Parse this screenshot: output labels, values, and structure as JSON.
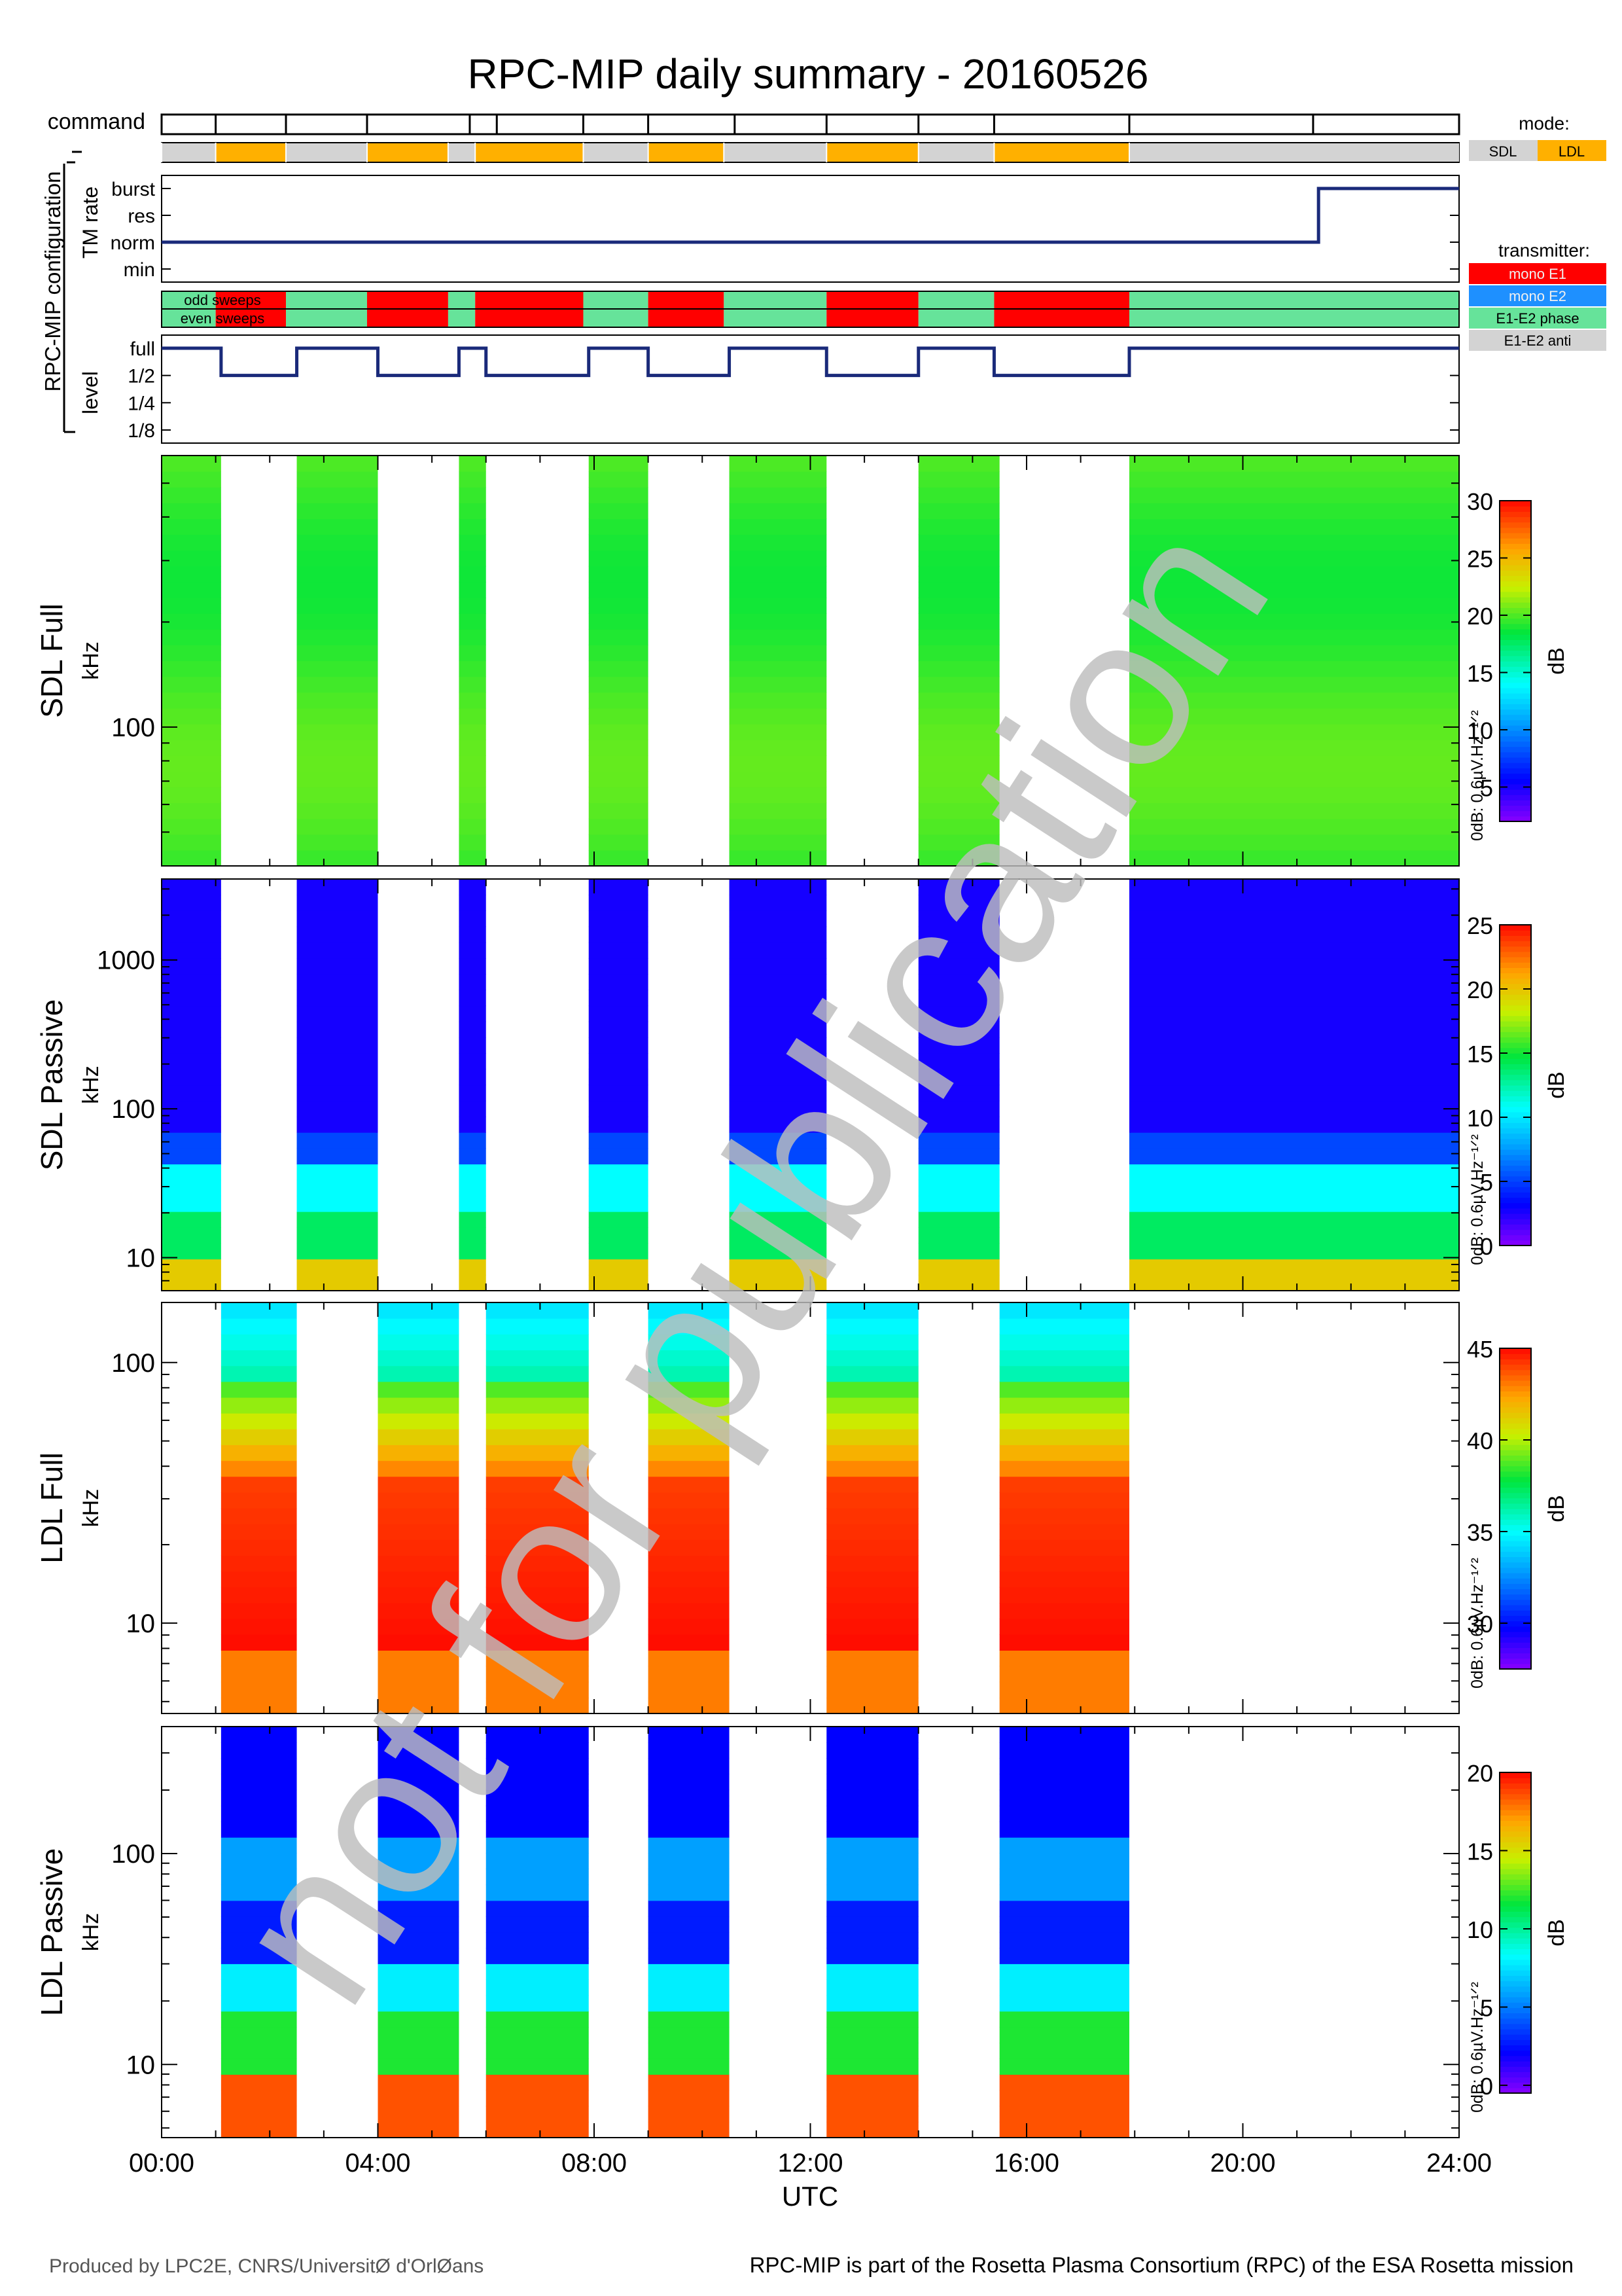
{
  "title": "RPC-MIP daily summary - 20160526",
  "config": {
    "group_label": "RPC-MIP configuration",
    "command_label": "command",
    "tm_rate_label": "TM rate",
    "tm_rate_levels": [
      "burst",
      "res",
      "norm",
      "min"
    ],
    "transmitter_row_labels": [
      "odd sweeps",
      "even sweeps"
    ],
    "level_label": "level",
    "level_levels": [
      "full",
      "1/2",
      "1/4",
      "1/8"
    ],
    "command_times_h": [
      0.0,
      1.0,
      2.3,
      3.8,
      5.7,
      6.2,
      7.8,
      9.0,
      10.6,
      12.3,
      14.0,
      15.4,
      17.9,
      21.3,
      24.0
    ],
    "mode_segments": [
      {
        "start": 0.0,
        "end": 1.0,
        "mode": "SDL"
      },
      {
        "start": 1.0,
        "end": 2.3,
        "mode": "LDL"
      },
      {
        "start": 2.3,
        "end": 3.8,
        "mode": "SDL"
      },
      {
        "start": 3.8,
        "end": 5.3,
        "mode": "LDL"
      },
      {
        "start": 5.3,
        "end": 5.8,
        "mode": "SDL"
      },
      {
        "start": 5.8,
        "end": 7.8,
        "mode": "LDL"
      },
      {
        "start": 7.8,
        "end": 9.0,
        "mode": "SDL"
      },
      {
        "start": 9.0,
        "end": 10.4,
        "mode": "LDL"
      },
      {
        "start": 10.4,
        "end": 12.3,
        "mode": "SDL"
      },
      {
        "start": 12.3,
        "end": 14.0,
        "mode": "LDL"
      },
      {
        "start": 14.0,
        "end": 15.4,
        "mode": "SDL"
      },
      {
        "start": 15.4,
        "end": 17.9,
        "mode": "LDL"
      },
      {
        "start": 17.9,
        "end": 24.0,
        "mode": "SDL"
      }
    ],
    "tm_rate_steps": [
      {
        "start": 0.0,
        "end": 21.4,
        "level": "norm"
      },
      {
        "start": 21.4,
        "end": 24.0,
        "level": "burst"
      }
    ],
    "transmitter_segments": [
      {
        "start": 0.0,
        "end": 1.0,
        "tx": "E1-E2 phase"
      },
      {
        "start": 1.0,
        "end": 2.3,
        "tx": "mono E1"
      },
      {
        "start": 2.3,
        "end": 3.8,
        "tx": "E1-E2 phase"
      },
      {
        "start": 3.8,
        "end": 5.3,
        "tx": "mono E1"
      },
      {
        "start": 5.3,
        "end": 5.8,
        "tx": "E1-E2 phase"
      },
      {
        "start": 5.8,
        "end": 7.8,
        "tx": "mono E1"
      },
      {
        "start": 7.8,
        "end": 9.0,
        "tx": "E1-E2 phase"
      },
      {
        "start": 9.0,
        "end": 10.4,
        "tx": "mono E1"
      },
      {
        "start": 10.4,
        "end": 12.3,
        "tx": "E1-E2 phase"
      },
      {
        "start": 12.3,
        "end": 14.0,
        "tx": "mono E1"
      },
      {
        "start": 14.0,
        "end": 15.4,
        "tx": "E1-E2 phase"
      },
      {
        "start": 15.4,
        "end": 17.9,
        "tx": "mono E1"
      },
      {
        "start": 17.9,
        "end": 24.0,
        "tx": "E1-E2 phase"
      }
    ],
    "level_steps": [
      {
        "start": 0.0,
        "end": 1.1,
        "level": "full"
      },
      {
        "start": 1.1,
        "end": 2.5,
        "level": "1/2"
      },
      {
        "start": 2.5,
        "end": 4.0,
        "level": "full"
      },
      {
        "start": 4.0,
        "end": 5.5,
        "level": "1/2"
      },
      {
        "start": 5.5,
        "end": 6.0,
        "level": "full"
      },
      {
        "start": 6.0,
        "end": 7.9,
        "level": "1/2"
      },
      {
        "start": 7.9,
        "end": 9.0,
        "level": "full"
      },
      {
        "start": 9.0,
        "end": 10.5,
        "level": "1/2"
      },
      {
        "start": 10.5,
        "end": 12.3,
        "level": "full"
      },
      {
        "start": 12.3,
        "end": 14.0,
        "level": "1/2"
      },
      {
        "start": 14.0,
        "end": 15.4,
        "level": "full"
      },
      {
        "start": 15.4,
        "end": 17.9,
        "level": "1/2"
      },
      {
        "start": 17.9,
        "end": 24.0,
        "level": "full"
      }
    ]
  },
  "legend": {
    "mode_title": "mode:",
    "modes": [
      {
        "name": "SDL",
        "color": "#d3d3d3"
      },
      {
        "name": "LDL",
        "color": "#ffb000"
      }
    ],
    "transmitter_title": "transmitter:",
    "transmitters": [
      {
        "name": "mono E1",
        "color": "#ff0000"
      },
      {
        "name": "mono E2",
        "color": "#1e90ff"
      },
      {
        "name": "E1-E2 phase",
        "color": "#66e39a"
      },
      {
        "name": "E1-E2 anti",
        "color": "#d3d3d3"
      }
    ]
  },
  "chart_data": [
    {
      "type": "heatmap",
      "panel": "SDL Full",
      "ylabel_main": "SDL Full",
      "ylabel_unit": "kHz",
      "y_scale": "log",
      "ylim": [
        40,
        600
      ],
      "y_ticks": [
        "100"
      ],
      "y_tick_values": [
        100
      ],
      "x_range_h": [
        0,
        24
      ],
      "active_intervals_h": [
        [
          0.0,
          1.1
        ],
        [
          2.5,
          4.0
        ],
        [
          5.5,
          6.0
        ],
        [
          7.9,
          9.0
        ],
        [
          10.5,
          12.3
        ],
        [
          14.0,
          15.5
        ],
        [
          17.9,
          24.0
        ]
      ],
      "colorbar": {
        "min": 2,
        "max": 30,
        "ticks": [
          "5",
          "10",
          "15",
          "20",
          "25",
          "30"
        ],
        "tick_values": [
          5,
          10,
          15,
          20,
          25,
          30
        ],
        "label": "dB",
        "ref_label": "0dB: 0.6µV.Hz⁻¹ᐟ²"
      }
    },
    {
      "type": "heatmap",
      "panel": "SDL Passive",
      "ylabel_main": "SDL Passive",
      "ylabel_unit": "kHz",
      "y_scale": "log",
      "ylim": [
        6,
        3500
      ],
      "y_ticks": [
        "10",
        "100",
        "1000"
      ],
      "y_tick_values": [
        10,
        100,
        1000
      ],
      "x_range_h": [
        0,
        24
      ],
      "active_intervals_h": [
        [
          0.0,
          1.1
        ],
        [
          2.5,
          4.0
        ],
        [
          5.5,
          6.0
        ],
        [
          7.9,
          9.0
        ],
        [
          10.5,
          12.3
        ],
        [
          14.0,
          15.5
        ],
        [
          17.9,
          24.0
        ]
      ],
      "colorbar": {
        "min": 0,
        "max": 25,
        "ticks": [
          "0",
          "5",
          "10",
          "15",
          "20",
          "25"
        ],
        "tick_values": [
          0,
          5,
          10,
          15,
          20,
          25
        ],
        "label": "dB",
        "ref_label": "0dB: 0.6µV.Hz⁻¹ᐟ²"
      }
    },
    {
      "type": "heatmap",
      "panel": "LDL Full",
      "ylabel_main": "LDL Full",
      "ylabel_unit": "kHz",
      "y_scale": "log",
      "ylim": [
        4.5,
        170
      ],
      "y_ticks": [
        "10",
        "100"
      ],
      "y_tick_values": [
        10,
        100
      ],
      "x_range_h": [
        0,
        24
      ],
      "active_intervals_h": [
        [
          1.1,
          2.5
        ],
        [
          4.0,
          5.5
        ],
        [
          6.0,
          7.9
        ],
        [
          9.0,
          10.5
        ],
        [
          12.3,
          14.0
        ],
        [
          15.5,
          17.9
        ]
      ],
      "colorbar": {
        "min": 27.5,
        "max": 45,
        "ticks": [
          "30",
          "35",
          "40",
          "45"
        ],
        "tick_values": [
          30,
          35,
          40,
          45
        ],
        "label": "dB",
        "ref_label": "0dB: 0.6µV.Hz⁻¹ᐟ²"
      }
    },
    {
      "type": "heatmap",
      "panel": "LDL Passive",
      "ylabel_main": "LDL Passive",
      "ylabel_unit": "kHz",
      "y_scale": "log",
      "ylim": [
        4.5,
        400
      ],
      "y_ticks": [
        "10",
        "100"
      ],
      "y_tick_values": [
        10,
        100
      ],
      "x_range_h": [
        0,
        24
      ],
      "active_intervals_h": [
        [
          1.1,
          2.5
        ],
        [
          4.0,
          5.5
        ],
        [
          6.0,
          7.9
        ],
        [
          9.0,
          10.5
        ],
        [
          12.3,
          14.0
        ],
        [
          15.5,
          17.9
        ]
      ],
      "colorbar": {
        "min": -0.5,
        "max": 20,
        "ticks": [
          "0",
          "5",
          "10",
          "15",
          "20"
        ],
        "tick_values": [
          0,
          5,
          10,
          15,
          20
        ],
        "label": "dB",
        "ref_label": "0dB: 0.6µV.Hz⁻¹ᐟ²"
      }
    }
  ],
  "x_axis": {
    "ticks": [
      "00:00",
      "04:00",
      "08:00",
      "12:00",
      "16:00",
      "20:00",
      "24:00"
    ],
    "tick_values_h": [
      0,
      4,
      8,
      12,
      16,
      20,
      24
    ],
    "label": "UTC"
  },
  "watermark": "not for publication",
  "footer": {
    "left": "Produced by LPC2E, CNRS/UniversitØ d'OrlØans",
    "right": "RPC-MIP is part of the Rosetta Plasma Consortium (RPC) of the ESA Rosetta mission"
  }
}
